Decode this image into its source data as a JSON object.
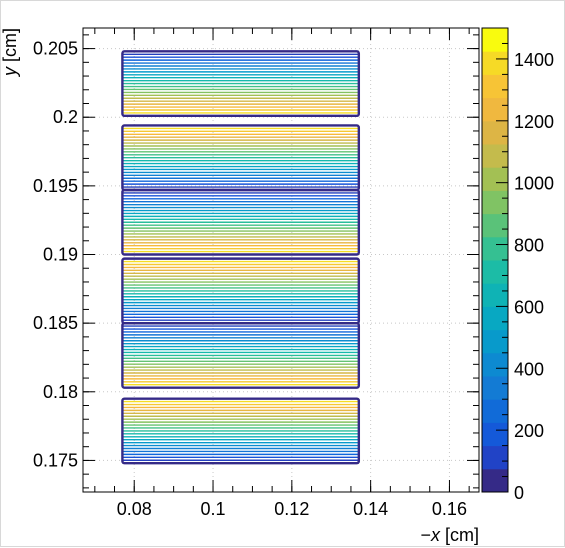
{
  "chart_data": {
    "type": "contour",
    "title": "",
    "xlabel_parts": [
      "−",
      "x",
      " [cm]"
    ],
    "ylabel_parts": [
      "y",
      " [cm]"
    ],
    "xlim": [
      0.067,
      0.1675
    ],
    "ylim": [
      0.1727,
      0.2065
    ],
    "x_ticks": [
      {
        "value": 0.08,
        "label": "0.08"
      },
      {
        "value": 0.1,
        "label": "0.1"
      },
      {
        "value": 0.12,
        "label": "0.12"
      },
      {
        "value": 0.14,
        "label": "0.14"
      },
      {
        "value": 0.16,
        "label": "0.16"
      }
    ],
    "y_ticks": [
      {
        "value": 0.175,
        "label": "0.175"
      },
      {
        "value": 0.18,
        "label": "0.18"
      },
      {
        "value": 0.185,
        "label": "0.185"
      },
      {
        "value": 0.19,
        "label": "0.19"
      },
      {
        "value": 0.195,
        "label": "0.195"
      },
      {
        "value": 0.2,
        "label": "0.2"
      },
      {
        "value": 0.205,
        "label": "0.205"
      }
    ],
    "grid": true,
    "x_extent": [
      0.077,
      0.137
    ],
    "bands": [
      {
        "y0": 0.1748,
        "y1": 0.1795,
        "low": "top"
      },
      {
        "y0": 0.1803,
        "y1": 0.185,
        "low": "bottom"
      },
      {
        "y0": 0.185,
        "y1": 0.1897,
        "low": "top"
      },
      {
        "y0": 0.19,
        "y1": 0.1947,
        "low": "bottom"
      },
      {
        "y0": 0.1947,
        "y1": 0.1994,
        "low": "top"
      },
      {
        "y0": 0.2001,
        "y1": 0.2048,
        "low": "bottom"
      }
    ],
    "colorbar": {
      "min": 0,
      "max": 1500,
      "ticks": [
        0,
        200,
        400,
        600,
        800,
        1000,
        1200,
        1400
      ],
      "levels": 20,
      "palette": [
        "#352a87",
        "#1c4ad7",
        "#0f64db",
        "#1478d4",
        "#0d8bd1",
        "#06a0c9",
        "#0ab0bb",
        "#19bba9",
        "#38c18f",
        "#6ac36f",
        "#98c257",
        "#c2bb4c",
        "#e2b444",
        "#f8ba3c",
        "#f5d12d",
        "#f9fb0e"
      ]
    }
  }
}
